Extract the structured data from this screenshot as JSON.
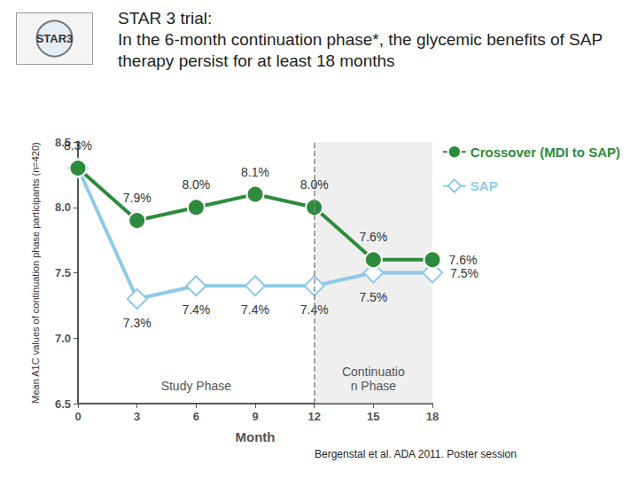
{
  "chart_data": {
    "type": "line",
    "title": "STAR 3 trial:",
    "subtitle": "In the 6-month continuation phase*, the glycemic benefits of SAP therapy persist for at least 18 months",
    "xlabel": "Month",
    "ylabel": "Mean A1C values of continuation phase participants (n=420)",
    "x": [
      0,
      3,
      6,
      9,
      12,
      15,
      18
    ],
    "xlim": [
      0,
      18
    ],
    "xticks": [
      0,
      3,
      6,
      9,
      12,
      15,
      18
    ],
    "ylim": [
      6.5,
      8.5
    ],
    "yticks": [
      6.5,
      {
        "value": 7,
        "label": "7.0"
      },
      7.5,
      {
        "value": 8,
        "label": "8.0"
      },
      8.5
    ],
    "grid": false,
    "legend": "right",
    "data_labels": true,
    "series": [
      {
        "name": "Crossover (MDI to SAP)",
        "color": "#2e8b3e",
        "marker": "circle",
        "values": [
          8.3,
          7.9,
          8.0,
          8.1,
          8.0,
          7.6,
          7.6
        ],
        "value_labels": [
          "8.3%",
          "7.9%",
          "8.0%",
          "8.1%",
          "8.0%",
          "7.6%",
          "7.6%"
        ]
      },
      {
        "name": "SAP",
        "color": "#8ecae6",
        "marker": "diamond",
        "values": [
          8.3,
          7.3,
          7.4,
          7.4,
          7.4,
          7.5,
          7.5
        ],
        "value_labels": [
          null,
          "7.3%",
          "7.4%",
          "7.4%",
          "7.4%",
          "7.5%",
          "7.5%"
        ]
      }
    ],
    "phases": [
      {
        "label": "Study Phase",
        "range": [
          0,
          12
        ]
      },
      {
        "label": "Continuation Phase",
        "range": [
          12,
          18
        ]
      }
    ],
    "annotations": {
      "logo": "STAR3",
      "source": "Bergenstal et al. ADA 2011. Poster session"
    }
  }
}
